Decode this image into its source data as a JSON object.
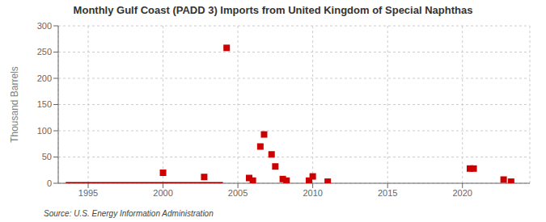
{
  "chart_data": {
    "type": "scatter",
    "title": "Monthly Gulf Coast (PADD 3) Imports from United Kingdom of Special Naphthas",
    "ylabel": "Thousand Barrels",
    "annotations": [
      "Source: U.S. Energy Information Administration"
    ],
    "xlim": [
      1993.0,
      2024.5
    ],
    "xticks": [
      1995,
      2000,
      2005,
      2010,
      2015,
      2020
    ],
    "ylim": [
      0,
      300
    ],
    "yticks": [
      0,
      50,
      100,
      150,
      200,
      250,
      300
    ],
    "grid": true,
    "series": [
      {
        "type": "scatter",
        "color": "#cc0000",
        "marker": "square",
        "x": [
          2000.0,
          2002.75,
          2004.25,
          2005.75,
          2006.0,
          2006.5,
          2006.75,
          2007.25,
          2007.5,
          2008.0,
          2008.25,
          2009.75,
          2010.0,
          2011.0,
          2020.5,
          2020.75,
          2022.75,
          2023.25
        ],
        "values": [
          20,
          12,
          258,
          10,
          5,
          70,
          93,
          55,
          32,
          8,
          5,
          5,
          13,
          3,
          28,
          28,
          7,
          3
        ]
      },
      {
        "type": "line",
        "color": "#8b0000",
        "x": [
          1993.5,
          2004.0
        ],
        "values": [
          0,
          0
        ]
      }
    ]
  }
}
